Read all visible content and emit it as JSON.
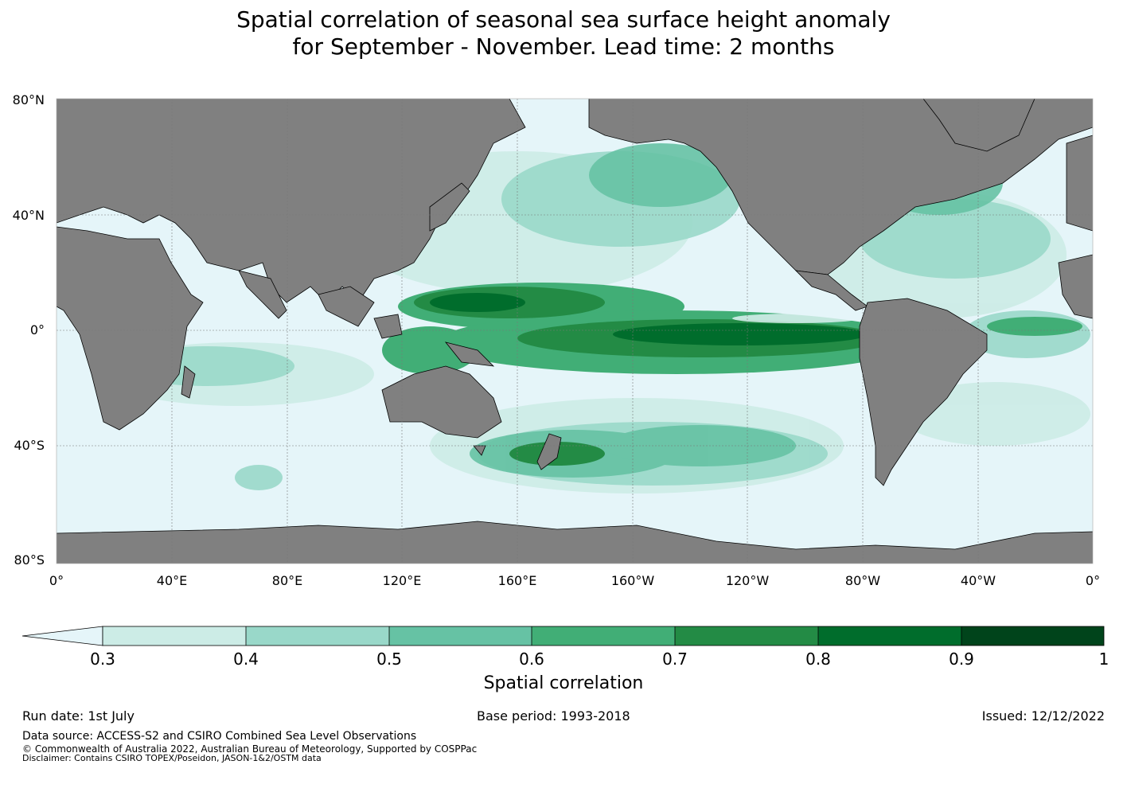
{
  "title": {
    "line1": "Spatial correlation of seasonal sea surface height anomaly",
    "line2": "for September - November. Lead time: 2 months"
  },
  "map": {
    "lat_labels": [
      "80°N",
      "40°N",
      "0°",
      "40°S",
      "80°S"
    ],
    "lon_labels": [
      "0°",
      "40°E",
      "80°E",
      "120°E",
      "160°E",
      "160°W",
      "120°W",
      "80°W",
      "40°W",
      "0°"
    ],
    "colors": {
      "ocean": "#e5f5f9",
      "land": "#808080",
      "corr_0_3": "#ccece6",
      "corr_0_4": "#99d8c9",
      "corr_0_5": "#66c2a4",
      "corr_0_6": "#41ae76",
      "corr_0_7": "#238b45",
      "corr_0_8": "#006d2c",
      "corr_0_9": "#00441b"
    }
  },
  "colorbar": {
    "ticks": [
      "0.3",
      "0.4",
      "0.5",
      "0.6",
      "0.7",
      "0.8",
      "0.9",
      "1"
    ],
    "label": "Spatial correlation",
    "colors": [
      "#ccece6",
      "#99d8c9",
      "#66c2a4",
      "#41ae76",
      "#238b45",
      "#006d2c",
      "#00441b"
    ],
    "extend_color": "#e5f5f9"
  },
  "footer": {
    "run_date": "Run date: 1st July",
    "base_period": "Base period: 1993-2018",
    "issued": "Issued: 12/12/2022",
    "data_source": "Data source: ACCESS-S2 and CSIRO Combined Sea Level Observations",
    "copyright": "© Commonwealth of Australia 2022, Australian Bureau of Meteorology, Supported by COSPPac",
    "disclaimer": "Disclaimer: Contains CSIRO TOPEX/Poseidon, JASON-1&2/OSTM data"
  }
}
